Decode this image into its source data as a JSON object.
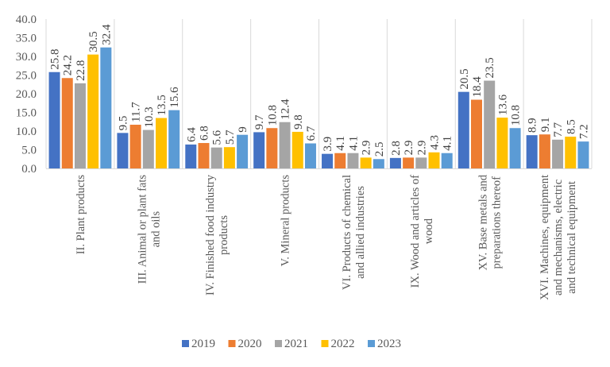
{
  "chart_data": {
    "type": "bar",
    "title": "",
    "xlabel": "",
    "ylabel": "",
    "ylim": [
      0,
      40
    ],
    "yticks": [
      "0.0",
      "5.0",
      "10.0",
      "15.0",
      "20.0",
      "25.0",
      "30.0",
      "35.0",
      "40.0"
    ],
    "grid": false,
    "legend_position": "bottom",
    "categories": [
      [
        "II. Plant products"
      ],
      [
        "III. Animal or plant fats",
        "and oils"
      ],
      [
        "IV. Finished food industry",
        "products"
      ],
      [
        "V. Mineral products"
      ],
      [
        "VI. Products of chemical",
        "and allied industries"
      ],
      [
        "IX. Wood and articles of",
        "wood"
      ],
      [
        "XV. Base metals and",
        "preparations thereof"
      ],
      [
        "XVI. Machines, equipment",
        "and mechanisms, electric",
        "and technical equipment"
      ]
    ],
    "series": [
      {
        "name": "2019",
        "color": "#4472C4",
        "values": [
          25.8,
          9.5,
          6.4,
          9.7,
          3.9,
          2.8,
          20.5,
          8.9
        ]
      },
      {
        "name": "2020",
        "color": "#ED7D31",
        "values": [
          24.2,
          11.7,
          6.8,
          10.8,
          4.1,
          2.9,
          18.4,
          9.1
        ]
      },
      {
        "name": "2021",
        "color": "#A5A5A5",
        "values": [
          22.8,
          10.3,
          5.6,
          12.4,
          4.1,
          2.9,
          23.5,
          7.7
        ]
      },
      {
        "name": "2022",
        "color": "#FFC000",
        "values": [
          30.5,
          13.5,
          5.7,
          9.8,
          2.9,
          4.3,
          13.6,
          8.5
        ]
      },
      {
        "name": "2023",
        "color": "#5B9BD5",
        "values": [
          32.4,
          15.6,
          9.0,
          6.7,
          2.5,
          4.1,
          10.8,
          7.2
        ]
      }
    ]
  }
}
